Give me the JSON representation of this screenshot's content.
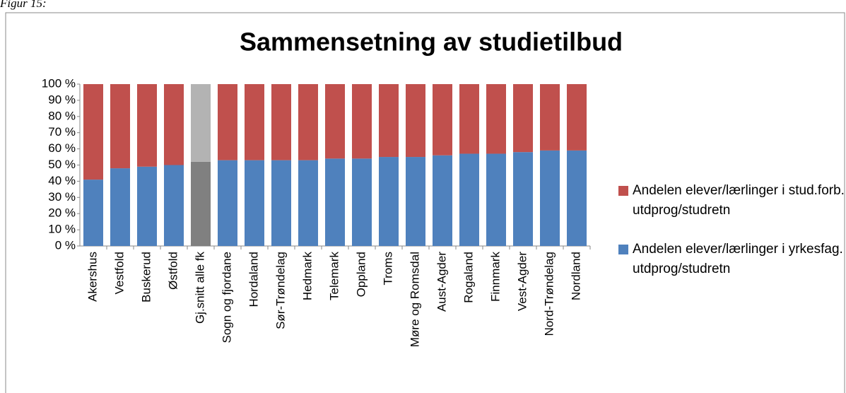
{
  "caption": "Figur 15:",
  "chart_data": {
    "type": "stacked_bar",
    "title": "Sammensetning av studietilbud",
    "categories": [
      "Akershus",
      "Vestfold",
      "Buskerud",
      "Østfold",
      "Gj.snitt alle fk",
      "Sogn og fjordane",
      "Hordaland",
      "Sør-Trøndelag",
      "Hedmark",
      "Telemark",
      "Oppland",
      "Troms",
      "Møre og Romsdal",
      "Aust-Agder",
      "Rogaland",
      "Finnmark",
      "Vest-Agder",
      "Nord-Trøndelag",
      "Nordland"
    ],
    "series": [
      {
        "name": "Andelen elever/lærlinger i yrkesfag. utdprog/studretn",
        "color": "#4f81bd",
        "colors": [
          "#4f81bd",
          "#4f81bd",
          "#4f81bd",
          "#4f81bd",
          "#808080",
          "#4f81bd",
          "#4f81bd",
          "#4f81bd",
          "#4f81bd",
          "#4f81bd",
          "#4f81bd",
          "#4f81bd",
          "#4f81bd",
          "#4f81bd",
          "#4f81bd",
          "#4f81bd",
          "#4f81bd",
          "#4f81bd",
          "#4f81bd"
        ],
        "values": [
          41,
          48,
          49,
          50,
          52,
          53,
          53,
          53,
          53,
          54,
          54,
          55,
          55,
          56,
          57,
          57,
          58,
          59,
          59
        ]
      },
      {
        "name": "Andelen elever/lærlinger i stud.forb. utdprog/studretn",
        "color": "#c0504d",
        "colors": [
          "#c0504d",
          "#c0504d",
          "#c0504d",
          "#c0504d",
          "#b3b3b3",
          "#c0504d",
          "#c0504d",
          "#c0504d",
          "#c0504d",
          "#c0504d",
          "#c0504d",
          "#c0504d",
          "#c0504d",
          "#c0504d",
          "#c0504d",
          "#c0504d",
          "#c0504d",
          "#c0504d",
          "#c0504d"
        ],
        "values": [
          59,
          52,
          51,
          50,
          48,
          47,
          47,
          47,
          47,
          46,
          46,
          45,
          45,
          44,
          43,
          43,
          42,
          41,
          41
        ]
      }
    ],
    "ylim": [
      0,
      100
    ],
    "yticks": [
      {
        "value": 0,
        "label": "0 %"
      },
      {
        "value": 10,
        "label": "10 %"
      },
      {
        "value": 20,
        "label": "20 %"
      },
      {
        "value": 30,
        "label": "30 %"
      },
      {
        "value": 40,
        "label": "40 %"
      },
      {
        "value": 50,
        "label": "50 %"
      },
      {
        "value": 60,
        "label": "60 %"
      },
      {
        "value": 70,
        "label": "70 %"
      },
      {
        "value": 80,
        "label": "80 %"
      },
      {
        "value": 90,
        "label": "90 %"
      },
      {
        "value": 100,
        "label": "100 %"
      }
    ],
    "legend": "right"
  }
}
